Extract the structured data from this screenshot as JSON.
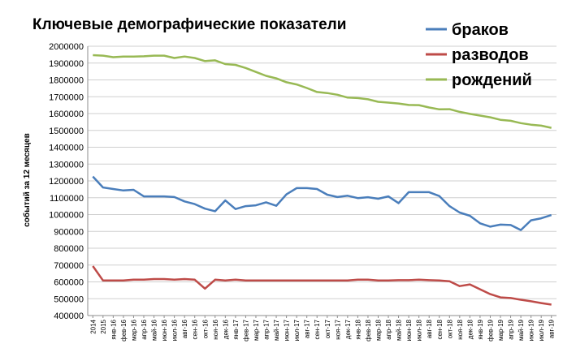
{
  "chart_data": {
    "type": "line",
    "title": "Ключевые демографические показатели",
    "ylabel": "событий за 12 месяцев",
    "xlabel": "",
    "ylim": [
      400000,
      2000000
    ],
    "yticks": [
      400000,
      500000,
      600000,
      700000,
      800000,
      900000,
      1000000,
      1100000,
      1200000,
      1300000,
      1400000,
      1500000,
      1600000,
      1700000,
      1800000,
      1900000,
      2000000
    ],
    "grid": true,
    "legend_position": "top-right",
    "x": [
      "2014",
      "2015",
      "янв-16",
      "фев-16",
      "мар-16",
      "апр-16",
      "май-16",
      "июн-16",
      "июл-16",
      "авг-16",
      "сен-16",
      "окт-16",
      "ноя-16",
      "дек-16",
      "янв-17",
      "фев-17",
      "мар-17",
      "апр-17",
      "май-17",
      "июн-17",
      "июл-17",
      "авг-17",
      "сен-17",
      "окт-17",
      "ноя-17",
      "дек-17",
      "янв-18",
      "фев-18",
      "мар-18",
      "апр-18",
      "май-18",
      "июн-18",
      "июл-18",
      "авг-18",
      "сен-18",
      "окт-18",
      "ноя-18",
      "дек-18",
      "янв-19",
      "фев-19",
      "мар-19",
      "апр-19",
      "май-19",
      "июн-19",
      "июл-19",
      "авг-19"
    ],
    "series": [
      {
        "name": "браков",
        "color": "#4a7ebb",
        "values": [
          1226000,
          1161000,
          1152000,
          1143000,
          1147000,
          1108000,
          1108000,
          1108000,
          1104000,
          1078000,
          1062000,
          1035000,
          1020000,
          1084000,
          1033000,
          1050000,
          1055000,
          1073000,
          1052000,
          1120000,
          1157000,
          1157000,
          1152000,
          1118000,
          1104000,
          1112000,
          1098000,
          1103000,
          1094000,
          1108000,
          1068000,
          1133000,
          1133000,
          1133000,
          1110000,
          1050000,
          1012000,
          993000,
          948000,
          928000,
          940000,
          938000,
          908000,
          966000,
          978000,
          997000
        ]
      },
      {
        "name": "разводов",
        "color": "#be4b48",
        "values": [
          694000,
          608000,
          608000,
          608000,
          613000,
          613000,
          617000,
          617000,
          613000,
          617000,
          613000,
          560000,
          613000,
          608000,
          613000,
          608000,
          608000,
          608000,
          608000,
          608000,
          608000,
          608000,
          608000,
          608000,
          608000,
          608000,
          613000,
          613000,
          608000,
          608000,
          610000,
          610000,
          613000,
          610000,
          608000,
          604000,
          575000,
          585000,
          556000,
          527000,
          508000,
          504000,
          494000,
          485000,
          474000,
          465000
        ]
      },
      {
        "name": "рождений",
        "color": "#98b954",
        "values": [
          1947000,
          1944000,
          1935000,
          1939000,
          1939000,
          1940000,
          1944000,
          1944000,
          1930000,
          1939000,
          1930000,
          1912000,
          1916000,
          1894000,
          1889000,
          1871000,
          1847000,
          1824000,
          1809000,
          1786000,
          1773000,
          1752000,
          1728000,
          1722000,
          1712000,
          1695000,
          1692000,
          1685000,
          1670000,
          1665000,
          1660000,
          1651000,
          1650000,
          1636000,
          1625000,
          1626000,
          1610000,
          1598000,
          1588000,
          1578000,
          1563000,
          1557000,
          1543000,
          1534000,
          1528000,
          1515000
        ]
      }
    ]
  }
}
